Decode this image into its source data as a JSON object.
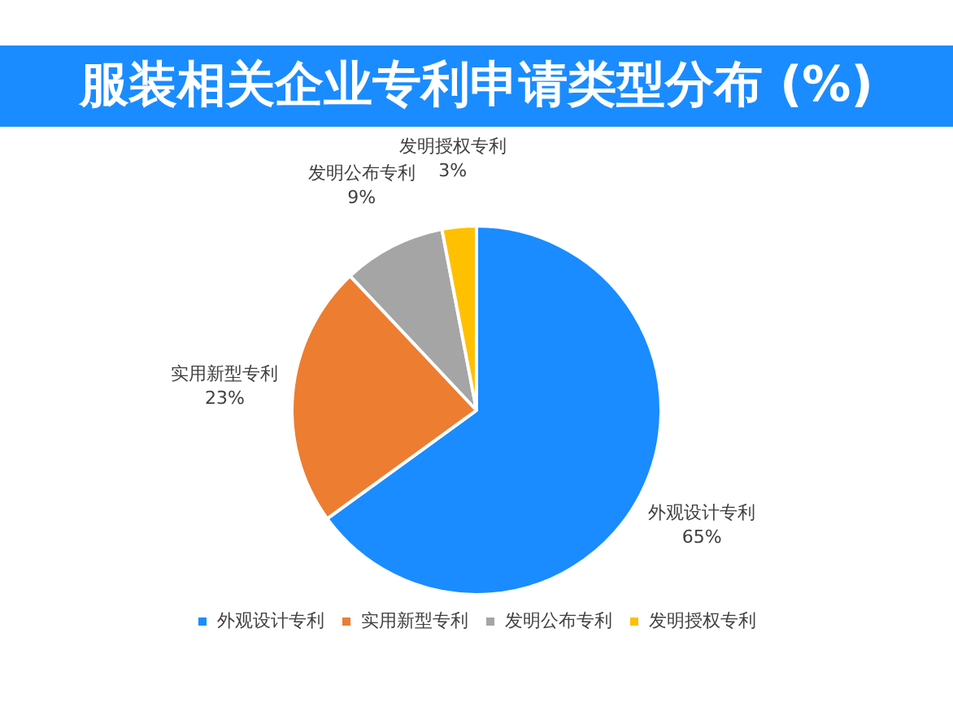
{
  "chart_data": {
    "type": "pie",
    "title": "服装相关企业专利申请类型分布 (%)",
    "categories": [
      "外观设计专利",
      "实用新型专利",
      "发明公布专利",
      "发明授权专利"
    ],
    "values": [
      65,
      23,
      9,
      3
    ],
    "colors": [
      "#1a8cff",
      "#ed7d31",
      "#a5a5a5",
      "#ffc000"
    ],
    "value_labels": [
      "65%",
      "23%",
      "9%",
      "3%"
    ],
    "legend": "bottom"
  }
}
